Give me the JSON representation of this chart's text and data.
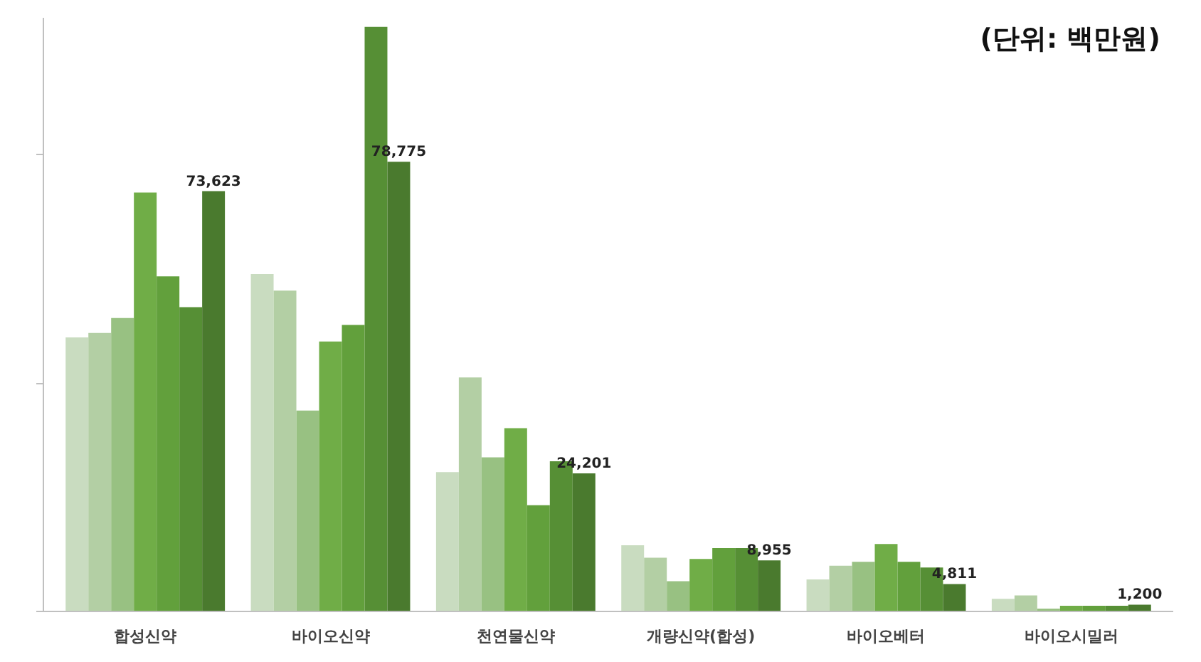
{
  "chart_data": {
    "type": "bar",
    "annotations": [
      "(단위: 백만원)"
    ],
    "categories": [
      "합성신약",
      "바이오신약",
      "천연물신약",
      "개량신약(합성)",
      "바이오베터",
      "바이오시밀러"
    ],
    "ylim": [
      0,
      104000
    ],
    "yticks": [
      {
        "value": 0,
        "label": null
      },
      {
        "value": 40000,
        "label": null
      },
      {
        "value": 80000,
        "label": null
      }
    ],
    "tick_labels": "x",
    "series": [
      {
        "color": "#c9dcc0",
        "values": [
          48000,
          59100,
          24400,
          11600,
          5600,
          2200
        ]
      },
      {
        "color": "#b3cfa4",
        "values": [
          48800,
          56200,
          41000,
          9400,
          8000,
          2800
        ]
      },
      {
        "color": "#98c182",
        "values": [
          51400,
          35200,
          27000,
          5300,
          8700,
          500
        ]
      },
      {
        "color": "#70ad47",
        "values": [
          73400,
          47300,
          32100,
          9200,
          11800,
          1000
        ]
      },
      {
        "color": "#62a03c",
        "values": [
          58700,
          50200,
          18600,
          11100,
          8700,
          1000
        ]
      },
      {
        "color": "#568f35",
        "values": [
          53300,
          102400,
          26300,
          11100,
          7700,
          1000
        ]
      },
      {
        "color": "#4a7a2e",
        "values": [
          73623,
          78775,
          24201,
          8955,
          4811,
          1200
        ],
        "value_labels": [
          "73,623",
          "78,775",
          "24,201",
          "8,955",
          "4,811",
          "1,200"
        ]
      }
    ],
    "grid": false
  }
}
